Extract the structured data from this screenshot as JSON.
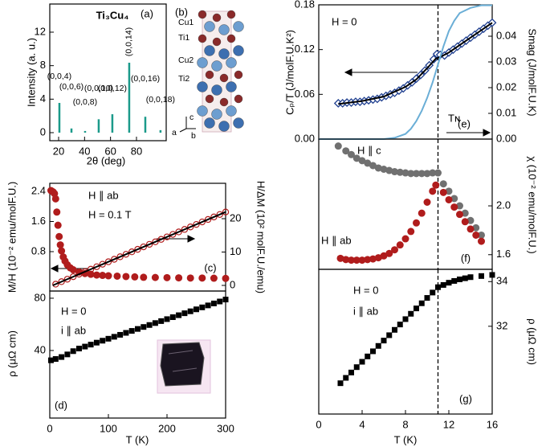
{
  "chart_data": [
    {
      "type": "stick",
      "panel_label": "(a)",
      "title": "Ti₃Cu₄",
      "xlabel": "2θ (deg)",
      "ylabel": "Intensity (a. u.)",
      "xlim": [
        13.2,
        102.9
      ],
      "ylim": [
        -0.96,
        15.36
      ],
      "xticks": [
        20,
        40,
        60,
        80
      ],
      "yticks": [
        0,
        4,
        8,
        12
      ],
      "series": [
        {
          "marker": "stick",
          "color": "#1b9a8a",
          "x": [
            20.6,
            29.9,
            40.4,
            50.9,
            61.4,
            74.4,
            86.8,
            98.5
          ],
          "values": [
            3.55,
            0.5,
            0.2,
            1.6,
            2.2,
            8.35,
            1.9,
            0.3
          ],
          "labels": [
            "(0,0,4)",
            "(0,0,6)",
            "(0,0,8)",
            "(0,0,10)",
            "(0,0,12)",
            "(0,0,14)",
            "(0,0,16)",
            "(0,0,18)"
          ]
        }
      ]
    },
    {
      "type": "scatter",
      "panel_label": "(c)",
      "ylabel": "M/H (10⁻² emu/molF.U.)",
      "y2label": "H/ΔM (10² molF.U./emu)",
      "xlim": [
        0,
        300
      ],
      "ylim": [
        -0.245,
        2.613
      ],
      "yticks": [
        0.8,
        1.6,
        2.4
      ],
      "y2lim": [
        -1.69,
        30.6
      ],
      "y2ticks": [
        0,
        10,
        20
      ],
      "annotations": [
        {
          "text": "H ∥ ab",
          "color": "#b01c1c"
        },
        {
          "text": "H = 0.1 T",
          "color": "#b01c1c"
        }
      ],
      "series": [
        {
          "marker": "circle",
          "color": "#b01c1c",
          "x": [
            2,
            4,
            6,
            8,
            10,
            12,
            14,
            16,
            18,
            20,
            23,
            26,
            30,
            35,
            40,
            50,
            60,
            70,
            80,
            90,
            100,
            115,
            130,
            145,
            160,
            180,
            200,
            220,
            240,
            260,
            280,
            300
          ],
          "values": [
            2.42,
            2.4,
            2.38,
            2.34,
            2.2,
            1.85,
            1.5,
            1.2,
            0.98,
            0.82,
            0.66,
            0.55,
            0.45,
            0.37,
            0.32,
            0.26,
            0.22,
            0.2,
            0.18,
            0.17,
            0.16,
            0.15,
            0.14,
            0.13,
            0.12,
            0.115,
            0.11,
            0.105,
            0.1,
            0.1,
            0.095,
            0.09
          ]
        },
        {
          "marker": "open-circle",
          "color": "#b01c1c",
          "axis": "y2",
          "x": [
            10,
            20,
            30,
            40,
            50,
            60,
            70,
            80,
            90,
            100,
            110,
            120,
            130,
            140,
            150,
            160,
            170,
            180,
            190,
            200,
            210,
            220,
            230,
            240,
            250,
            260,
            270,
            280,
            290,
            300
          ],
          "values": [
            0.37,
            1.12,
            1.86,
            2.61,
            3.36,
            4.1,
            4.85,
            5.59,
            6.34,
            7.08,
            7.83,
            8.58,
            9.32,
            10.07,
            10.81,
            11.56,
            12.31,
            13.05,
            13.8,
            14.54,
            15.29,
            16.03,
            16.78,
            17.53,
            18.27,
            19.02,
            19.76,
            20.51,
            21.25,
            22.0
          ]
        },
        {
          "marker": "line",
          "color": "#000000",
          "axis": "y2",
          "x": [
            5,
            300
          ],
          "values": [
            0,
            22
          ]
        }
      ]
    },
    {
      "type": "scatter",
      "panel_label": "(d)",
      "xlabel": "T (K)",
      "ylabel": "ρ (μΩ cm)",
      "xlim": [
        0,
        300
      ],
      "ylim": [
        -11.7,
        85.5
      ],
      "xticks": [
        0,
        100,
        200,
        300
      ],
      "yticks": [
        40,
        80
      ],
      "annotations": [
        {
          "text": "H = 0",
          "color": "#000000"
        },
        {
          "text": "i ∥ ab",
          "color": "#000000"
        }
      ],
      "series": [
        {
          "marker": "square",
          "color": "#000000",
          "x": [
            2,
            10,
            20,
            30,
            40,
            50,
            60,
            70,
            80,
            90,
            100,
            110,
            120,
            130,
            140,
            150,
            160,
            170,
            180,
            190,
            200,
            210,
            220,
            230,
            240,
            250,
            260,
            270,
            280,
            290,
            300
          ],
          "values": [
            32.5,
            33.5,
            35,
            37,
            39.5,
            41.5,
            43,
            44.5,
            46,
            47.5,
            49,
            50.5,
            52,
            53.5,
            55,
            56.5,
            58,
            59.5,
            61,
            62.5,
            64,
            65.5,
            67,
            68.5,
            70,
            71.5,
            73,
            74.5,
            76,
            77.5,
            79
          ]
        }
      ]
    },
    {
      "type": "scatter",
      "panel_label": "(e)",
      "ylabel": "Cₚ/T (J/molF.U.K²)",
      "y2label": "Smag (J/molF.U.K)",
      "xlim": [
        0,
        16
      ],
      "ylim": [
        0,
        0.18
      ],
      "yticks": [
        {
          "value": 0,
          "label": "0.00"
        },
        0.06,
        0.12,
        0.18
      ],
      "y2lim": [
        0,
        0.0522
      ],
      "y2ticks": [
        {
          "value": 0,
          "label": "0.00"
        },
        0.01,
        0.02,
        0.03,
        0.04
      ],
      "vline": 11,
      "annotations": [
        {
          "text": "H = 0",
          "color": "#000000"
        },
        {
          "text": "Tɴ",
          "color": "#000000"
        }
      ],
      "series": [
        {
          "marker": "diamond",
          "color": "#1f3f8f",
          "x": [
            1.8,
            2.2,
            2.6,
            3,
            3.4,
            3.8,
            4.2,
            4.6,
            5,
            5.4,
            5.8,
            6.2,
            6.6,
            7,
            7.4,
            7.8,
            8.2,
            8.6,
            9,
            9.4,
            9.8,
            10.2,
            10.6,
            10.9,
            11.2,
            11.6,
            12,
            12.4,
            12.8,
            13.2,
            13.6,
            14,
            14.4,
            14.8,
            15.2,
            15.6,
            16
          ],
          "values": [
            0.048,
            0.048,
            0.049,
            0.049,
            0.05,
            0.05,
            0.051,
            0.052,
            0.053,
            0.054,
            0.056,
            0.058,
            0.06,
            0.062,
            0.065,
            0.068,
            0.072,
            0.076,
            0.081,
            0.086,
            0.092,
            0.099,
            0.107,
            0.114,
            0.113,
            0.112,
            0.116,
            0.12,
            0.124,
            0.128,
            0.132,
            0.136,
            0.14,
            0.144,
            0.148,
            0.152,
            0.156
          ]
        },
        {
          "marker": "line",
          "color": "#000000",
          "x": [
            1.8,
            4,
            6,
            8,
            9,
            10,
            10.8,
            11.2,
            12,
            14,
            16
          ],
          "values": [
            0.047,
            0.051,
            0.057,
            0.07,
            0.08,
            0.095,
            0.108,
            0.11,
            0.116,
            0.136,
            0.156
          ]
        },
        {
          "marker": "line",
          "color": "#6aaed6",
          "axis": "y2",
          "x": [
            0,
            6,
            7,
            8,
            8.5,
            9,
            9.5,
            10,
            10.5,
            11,
            11.5,
            12,
            12.5,
            13,
            14,
            15,
            16
          ],
          "values": [
            0,
            0,
            0.0005,
            0.002,
            0.004,
            0.007,
            0.011,
            0.016,
            0.022,
            0.029,
            0.036,
            0.042,
            0.046,
            0.049,
            0.051,
            0.052,
            0.052
          ]
        }
      ]
    },
    {
      "type": "scatter",
      "panel_label": "(f)",
      "y2label": "χ (10⁻² emu/molF.U.)",
      "xlim": [
        0,
        16
      ],
      "y2lim": [
        1.48,
        2.547
      ],
      "y2ticks": [
        1.6,
        {
          "value": 2,
          "label": "2.0"
        }
      ],
      "vline": 11,
      "annotations": [
        {
          "text": "H ∥ c",
          "color": "#000000"
        },
        {
          "text": "H ∥ ab",
          "color": "#b01c1c"
        }
      ],
      "series": [
        {
          "marker": "circle",
          "color": "#707070",
          "axis": "y2",
          "x": [
            1.8,
            2.5,
            3,
            3.5,
            4,
            4.5,
            5,
            5.5,
            6,
            6.5,
            7,
            7.5,
            8,
            8.5,
            9,
            9.5,
            10,
            10.5,
            11,
            11.5,
            12,
            12.5,
            13,
            13.5,
            14,
            14.5,
            15
          ],
          "values": [
            2.49,
            2.45,
            2.42,
            2.39,
            2.37,
            2.35,
            2.33,
            2.31,
            2.3,
            2.29,
            2.28,
            2.275,
            2.27,
            2.265,
            2.265,
            2.265,
            2.265,
            2.27,
            2.27,
            2.18,
            2.12,
            2.06,
            2.0,
            1.94,
            1.88,
            1.82,
            1.76
          ]
        },
        {
          "marker": "circle",
          "color": "#b01c1c",
          "axis": "y2",
          "x": [
            2,
            2.5,
            3,
            3.5,
            4,
            4.5,
            5,
            5.5,
            6,
            6.5,
            7,
            7.5,
            8,
            8.5,
            9,
            9.5,
            10,
            10.5,
            10.8,
            11.5,
            12,
            12.5,
            13,
            13.5,
            14,
            14.5,
            15
          ],
          "values": [
            1.57,
            1.56,
            1.555,
            1.555,
            1.555,
            1.56,
            1.565,
            1.575,
            1.59,
            1.61,
            1.64,
            1.68,
            1.73,
            1.79,
            1.86,
            1.94,
            2.03,
            2.12,
            2.17,
            2.11,
            2.05,
            1.99,
            1.93,
            1.87,
            1.81,
            1.76,
            1.71
          ]
        }
      ]
    },
    {
      "type": "scatter",
      "panel_label": "(g)",
      "xlabel": "T (K)",
      "y2label": "ρ (μΩ cm)",
      "xlim": [
        0,
        16
      ],
      "xticks": [
        0,
        4,
        8,
        12,
        16
      ],
      "y2lim": [
        28.07,
        34.55
      ],
      "y2ticks": [
        32,
        34
      ],
      "vline": 11,
      "annotations": [
        {
          "text": "H = 0",
          "color": "#000000"
        },
        {
          "text": "i ∥ ab",
          "color": "#000000"
        }
      ],
      "series": [
        {
          "marker": "square",
          "color": "#000000",
          "axis": "y2",
          "x": [
            2,
            2.5,
            3,
            3.5,
            4,
            4.5,
            5,
            5.5,
            6,
            6.5,
            7,
            7.5,
            8,
            8.5,
            9,
            9.5,
            10,
            10.5,
            11,
            11.5,
            12,
            12.5,
            13,
            13.5,
            14,
            15,
            16
          ],
          "values": [
            29.45,
            29.69,
            29.93,
            30.17,
            30.41,
            30.65,
            30.88,
            31.12,
            31.36,
            31.6,
            31.84,
            32.08,
            32.32,
            32.56,
            32.8,
            33.03,
            33.27,
            33.51,
            33.75,
            33.85,
            33.95,
            34.03,
            34.1,
            34.15,
            34.2,
            34.25,
            34.3
          ]
        }
      ]
    }
  ],
  "structure": {
    "panel_label": "(b)",
    "sites": [
      "Cu1",
      "Ti1",
      "Cu2",
      "Ti2"
    ],
    "axes": [
      "c",
      "a",
      "b"
    ]
  }
}
